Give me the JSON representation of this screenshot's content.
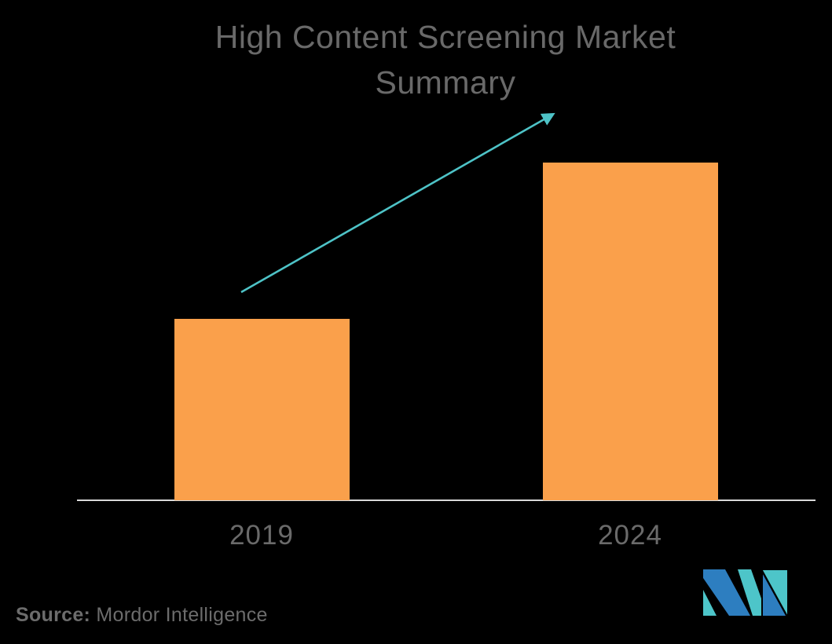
{
  "title": "High Content Screening Market Summary",
  "source": {
    "label": "Source:",
    "text": " Mordor Intelligence"
  },
  "logo": {
    "name": "mordor-intelligence-logo",
    "teal": "#4DC5C9",
    "blue": "#2D7EC0"
  },
  "colors": {
    "background": "#000000",
    "bar": "#FAA04B",
    "arrow": "#4EC3C7",
    "axis": "#D9D9D9",
    "title_text": "#696969",
    "label_text": "#6A6A6A",
    "source_text": "#6C6C6C"
  },
  "chart_data": {
    "type": "bar",
    "title": "High Content Screening Market Summary",
    "categories": [
      "2019",
      "2024"
    ],
    "values": [
      231,
      430
    ],
    "values_note": "relative bar heights in pixels as rendered; no y-axis scale or numeric values are shown in the image (2024 is ~1.86x the 2019 bar)",
    "xlabel": "",
    "ylabel": "",
    "ylim": [
      0,
      460
    ],
    "grid": false,
    "legend": false,
    "annotations": [
      "teal growth arrow rising from above the 2019 bar to above the 2024 bar"
    ]
  }
}
